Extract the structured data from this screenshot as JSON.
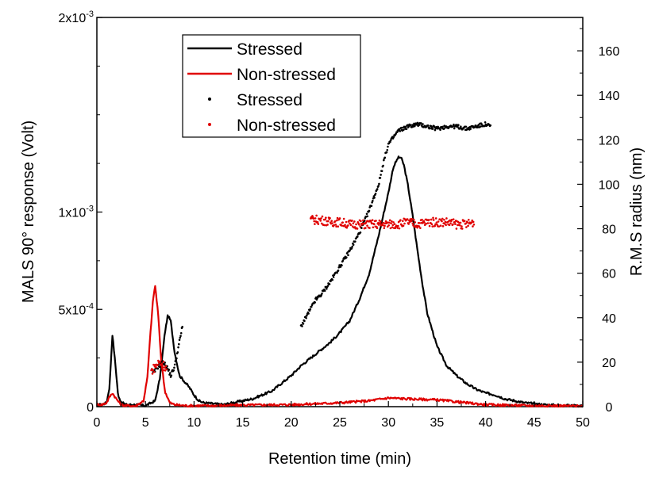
{
  "chart_data": {
    "type": "line",
    "title": "",
    "xlabel": "Retention time (min)",
    "ylabel_left": "MALS 90° response (Volt)",
    "ylabel_right": "R.M.S radius (nm)",
    "xlim": [
      0,
      50
    ],
    "ylim_left": [
      0,
      0.002
    ],
    "ylim_right": [
      0,
      175
    ],
    "x_ticks": [
      "0",
      "5",
      "10",
      "15",
      "20",
      "25",
      "30",
      "35",
      "40",
      "45",
      "50"
    ],
    "y_left_ticks": [
      {
        "mant": "0",
        "exp": ""
      },
      {
        "mant": "5x10",
        "exp": "-4"
      },
      {
        "mant": "1x10",
        "exp": "-3"
      },
      {
        "mant": "2x10",
        "exp": "-3"
      }
    ],
    "y_right_ticks": [
      "0",
      "20",
      "40",
      "60",
      "80",
      "100",
      "120",
      "140",
      "160"
    ],
    "legend": {
      "position": "top-left",
      "entries": [
        {
          "label": "Stressed",
          "style": "line",
          "color": "#000000"
        },
        {
          "label": "Non-stressed",
          "style": "line",
          "color": "#e00000"
        },
        {
          "label": "Stressed",
          "style": "dot",
          "color": "#000000"
        },
        {
          "label": "Non-stressed",
          "style": "dot",
          "color": "#e00000"
        }
      ]
    },
    "series": [
      {
        "name": "Stressed",
        "axis": "left",
        "style": "line",
        "color": "#000000",
        "x": [
          0,
          0.5,
          1.0,
          1.3,
          1.6,
          1.9,
          2.2,
          2.6,
          3.0,
          4.0,
          5.0,
          6.0,
          6.5,
          7.0,
          7.3,
          7.6,
          8.0,
          8.5,
          9.0,
          9.5,
          10,
          10.5,
          11,
          12,
          13,
          14,
          15,
          16,
          17,
          18,
          19,
          20,
          21,
          22,
          23,
          24,
          25,
          26,
          27,
          28,
          29,
          30,
          30.5,
          31,
          31.3,
          31.6,
          32,
          32.5,
          33,
          33.5,
          34,
          35,
          36,
          37,
          38,
          39,
          40,
          41,
          42,
          43,
          44,
          45,
          46,
          47,
          48,
          49,
          50
        ],
        "y": [
          1e-05,
          1e-05,
          2e-05,
          0.0001,
          0.00037,
          0.00022,
          5e-05,
          2e-05,
          1e-05,
          1e-05,
          5e-06,
          3e-05,
          0.00015,
          0.00038,
          0.00047,
          0.00044,
          0.00028,
          0.00016,
          0.00013,
          0.0001,
          6e-05,
          3e-05,
          2e-05,
          1.5e-05,
          1e-05,
          2e-05,
          3e-05,
          4e-05,
          6e-05,
          8e-05,
          0.00012,
          0.00016,
          0.00021,
          0.00025,
          0.00029,
          0.00033,
          0.00038,
          0.00044,
          0.00055,
          0.00068,
          0.00088,
          0.0011,
          0.00123,
          0.00128,
          0.00128,
          0.00124,
          0.00114,
          0.00098,
          0.0008,
          0.00063,
          0.00048,
          0.00031,
          0.00021,
          0.00016,
          0.00012,
          9e-05,
          7e-05,
          6e-05,
          4e-05,
          3e-05,
          2e-05,
          1.5e-05,
          1e-05,
          8e-06,
          6e-06,
          5e-06,
          4e-06
        ]
      },
      {
        "name": "Non-stressed",
        "axis": "left",
        "style": "line",
        "color": "#e00000",
        "x": [
          0,
          0.5,
          1.0,
          1.3,
          1.6,
          2.0,
          2.5,
          3.0,
          4.0,
          4.8,
          5.2,
          5.5,
          5.8,
          6.0,
          6.3,
          6.6,
          7.0,
          7.5,
          8,
          9,
          10,
          12,
          15,
          20,
          25,
          28,
          30,
          32,
          35,
          38,
          40,
          45,
          50
        ],
        "y": [
          1e-05,
          1e-05,
          2e-05,
          5e-05,
          7e-05,
          4e-05,
          1e-05,
          5e-06,
          3e-06,
          3e-05,
          0.00015,
          0.00037,
          0.00056,
          0.00062,
          0.00048,
          0.00025,
          8e-05,
          2e-05,
          1e-05,
          5e-06,
          5e-06,
          5e-06,
          8e-06,
          1e-05,
          2e-05,
          3e-05,
          4.5e-05,
          4e-05,
          3.5e-05,
          2e-05,
          1e-05,
          5e-06,
          3e-06
        ]
      },
      {
        "name": "Stressed",
        "axis": "right",
        "style": "dot",
        "color": "#000000",
        "x": [
          5.8,
          6.3,
          6.8,
          7.2,
          7.6,
          8.0,
          8.4,
          8.8,
          21,
          21.5,
          22,
          22.5,
          23,
          24,
          25,
          26,
          27,
          28,
          29,
          29.5,
          30,
          31,
          32,
          33,
          34,
          35,
          36,
          37,
          38,
          39,
          40,
          40.5
        ],
        "y": [
          15,
          18,
          20,
          18,
          14,
          18,
          27,
          36,
          36,
          40,
          44,
          48,
          50,
          56,
          63,
          70,
          78,
          88,
          100,
          110,
          118,
          124,
          126,
          127,
          126,
          125,
          126,
          126,
          125,
          126,
          127,
          126
        ]
      },
      {
        "name": "Non-stressed",
        "axis": "right",
        "style": "dot",
        "color": "#e00000",
        "x": [
          5.6,
          6.0,
          6.4,
          6.8,
          7.2,
          22,
          23,
          24,
          25,
          26,
          27,
          28,
          29,
          30,
          31,
          32,
          33,
          34,
          35,
          36,
          37,
          38,
          38.8
        ],
        "y": [
          16,
          18,
          20,
          19,
          17,
          84,
          84,
          83,
          83,
          82,
          82,
          82,
          82,
          82,
          82,
          83,
          82,
          83,
          83,
          83,
          82,
          82,
          83
        ]
      }
    ]
  }
}
